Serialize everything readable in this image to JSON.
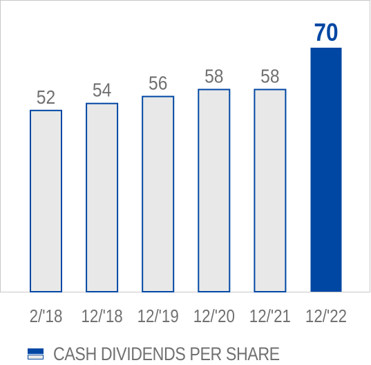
{
  "chart_data": {
    "type": "bar",
    "categories": [
      "2/'18",
      "12/'18",
      "12/'19",
      "12/'20",
      "12/'21",
      "12/'22"
    ],
    "values": [
      52,
      54,
      56,
      58,
      58,
      70
    ],
    "data_labels": [
      "52",
      "54",
      "56",
      "58",
      "58",
      "70"
    ],
    "highlight_index": 5,
    "ylim": [
      0,
      70
    ],
    "grid": false,
    "legend_position": "bottom-left",
    "colors": {
      "bar_fill": "#e8e8e8",
      "bar_stroke": "#0047a3",
      "highlight_fill": "#0047a3",
      "label_gray": "#707070",
      "highlight_label": "#0047a3",
      "frame": "#c8c8c8"
    }
  },
  "legend": {
    "label": "CASH DIVIDENDS PER SHARE",
    "icon": "legend-swatch-icon"
  }
}
